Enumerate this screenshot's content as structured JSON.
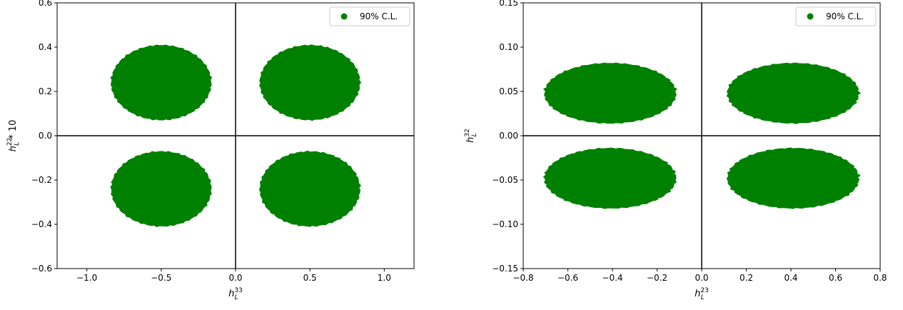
{
  "colors": {
    "region": "#008000",
    "zero_lines": "#000000"
  },
  "chart_data": [
    {
      "type": "scatter",
      "xlabel_base": "h",
      "xlabel_sub": "L",
      "xlabel_sup": "33",
      "ylabel_base": "h",
      "ylabel_sub": "L",
      "ylabel_sup": "22",
      "ylabel_suffix": " * 10",
      "xlim": [
        -1.2,
        1.2
      ],
      "ylim": [
        -0.6,
        0.6
      ],
      "xticks": [
        -1.0,
        -0.5,
        0.0,
        0.5,
        1.0
      ],
      "xtick_labels": [
        "−1.0",
        "−0.5",
        "0.0",
        "0.5",
        "1.0"
      ],
      "yticks": [
        -0.6,
        -0.4,
        -0.2,
        0.0,
        0.2,
        0.4,
        0.6
      ],
      "ytick_labels": [
        "−0.6",
        "−0.4",
        "−0.2",
        "0.0",
        "0.2",
        "0.4",
        "0.6"
      ],
      "legend": {
        "label": "90% C.L.",
        "placement": "upper right"
      },
      "series": [
        {
          "name": "90% C.L.",
          "regions": [
            {
              "cx": -0.5,
              "cy": 0.24,
              "rx": 0.33,
              "ry": 0.165
            },
            {
              "cx": 0.5,
              "cy": 0.24,
              "rx": 0.33,
              "ry": 0.165
            },
            {
              "cx": -0.5,
              "cy": -0.24,
              "rx": 0.33,
              "ry": 0.165
            },
            {
              "cx": 0.5,
              "cy": -0.24,
              "rx": 0.33,
              "ry": 0.165
            }
          ]
        }
      ]
    },
    {
      "type": "scatter",
      "xlabel_base": "h",
      "xlabel_sub": "L",
      "xlabel_sup": "23",
      "ylabel_base": "h",
      "ylabel_sub": "L",
      "ylabel_sup": "32",
      "ylabel_suffix": "",
      "xlim": [
        -0.8,
        0.8
      ],
      "ylim": [
        -0.15,
        0.15
      ],
      "xticks": [
        -0.8,
        -0.6,
        -0.4,
        -0.2,
        0.0,
        0.2,
        0.4,
        0.6,
        0.8
      ],
      "xtick_labels": [
        "−0.8",
        "−0.6",
        "−0.4",
        "−0.2",
        "0.0",
        "0.2",
        "0.4",
        "0.6",
        "0.8"
      ],
      "yticks": [
        -0.15,
        -0.1,
        -0.05,
        0.0,
        0.05,
        0.1,
        0.15
      ],
      "ytick_labels": [
        "−0.15",
        "−0.10",
        "−0.05",
        "0.00",
        "0.05",
        "0.10",
        "0.15"
      ],
      "legend": {
        "label": "90% C.L.",
        "placement": "upper right"
      },
      "series": [
        {
          "name": "90% C.L.",
          "regions": [
            {
              "cx": -0.41,
              "cy": 0.048,
              "rx": 0.29,
              "ry": 0.033
            },
            {
              "cx": 0.41,
              "cy": 0.048,
              "rx": 0.29,
              "ry": 0.033
            },
            {
              "cx": -0.41,
              "cy": -0.048,
              "rx": 0.29,
              "ry": 0.033
            },
            {
              "cx": 0.41,
              "cy": -0.048,
              "rx": 0.29,
              "ry": 0.033
            }
          ]
        }
      ]
    }
  ]
}
